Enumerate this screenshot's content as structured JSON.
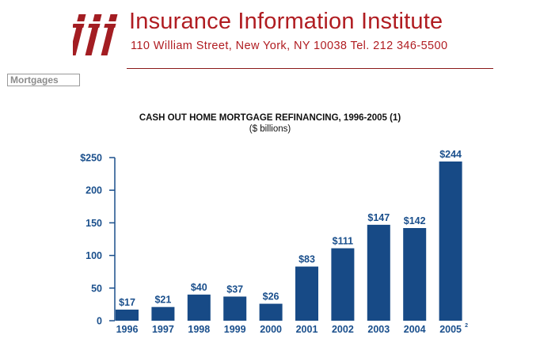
{
  "header": {
    "org_name": "Insurance Information Institute",
    "address": "110 William Street, New York, NY 10038 Tel. 212 346-5500",
    "brand_color": "#b01c21",
    "logo_icon": "iii-logo-icon"
  },
  "section_tab": "Mortgages",
  "chart_data": {
    "type": "bar",
    "title": "CASH OUT HOME MORTGAGE REFINANCING, 1996-2005 (1)",
    "subtitle": "($ billions)",
    "xlabel": "",
    "ylabel": "",
    "categories": [
      "1996",
      "1997",
      "1998",
      "1999",
      "2000",
      "2001",
      "2002",
      "2003",
      "2004",
      "2005"
    ],
    "category_note": "2",
    "values": [
      17,
      21,
      40,
      37,
      26,
      83,
      111,
      147,
      142,
      244
    ],
    "value_labels": [
      "$17",
      "$21",
      "$40",
      "$37",
      "$26",
      "$83",
      "$111",
      "$147",
      "$142",
      "$244"
    ],
    "yticks": [
      0,
      50,
      100,
      150,
      200,
      250
    ],
    "ytick_labels": [
      "0",
      "50",
      "100",
      "150",
      "200",
      "$250"
    ],
    "ylim": [
      0,
      250
    ],
    "grid": false,
    "bar_color": "#174a86",
    "text_color": "#1a4f8c"
  }
}
